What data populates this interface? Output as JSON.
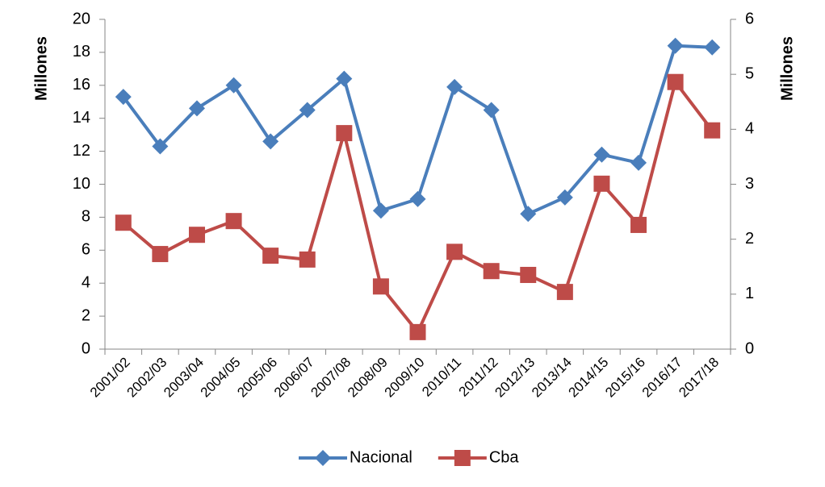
{
  "chart_data": {
    "type": "line",
    "y_label": "Millones",
    "y2_label": "Millones",
    "categories": [
      "2001/02",
      "2002/03",
      "2003/04",
      "2004/05",
      "2005/06",
      "2006/07",
      "2007/08",
      "2008/09",
      "2009/10",
      "2010/11",
      "2011/12",
      "2012/13",
      "2013/14",
      "2014/15",
      "2015/16",
      "2016/17",
      "2017/18"
    ],
    "series": [
      {
        "name": "Nacional",
        "color": "#4a7ebb",
        "marker": "diamond",
        "values": [
          15.3,
          12.3,
          14.6,
          16.0,
          12.6,
          14.5,
          16.4,
          8.4,
          9.1,
          15.9,
          14.5,
          8.2,
          9.2,
          11.8,
          11.3,
          18.4,
          18.3
        ]
      },
      {
        "name": "Cba",
        "color": "#be4b48",
        "marker": "square",
        "axis": "y2",
        "values": [
          2.3,
          1.73,
          2.08,
          2.33,
          1.7,
          1.63,
          3.93,
          1.14,
          0.31,
          1.77,
          1.42,
          1.35,
          1.04,
          3.01,
          2.26,
          4.86,
          3.98
        ]
      }
    ],
    "ylim": [
      0,
      20
    ],
    "yticks": [
      0,
      2,
      4,
      6,
      8,
      10,
      12,
      14,
      16,
      18,
      20
    ],
    "y2lim": [
      0,
      6
    ],
    "y2ticks": [
      0,
      1,
      2,
      3,
      4,
      5,
      6
    ],
    "grid": false,
    "legend": "bottom"
  }
}
